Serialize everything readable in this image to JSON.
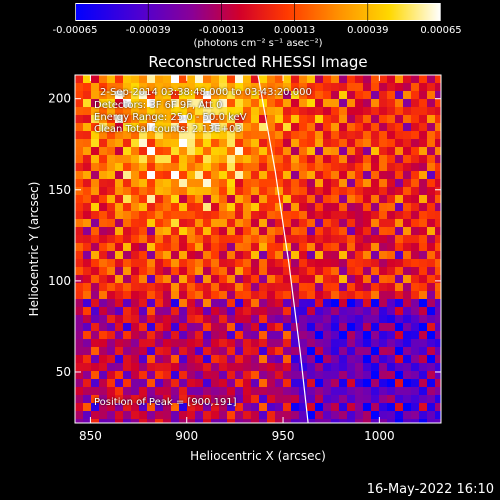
{
  "colorbar": {
    "ticks": [
      "-0.00065",
      "-0.00039",
      "-0.00013",
      "0.00013",
      "0.00039",
      "0.00065"
    ],
    "unit": "(photons cm⁻² s⁻¹ asec⁻²)",
    "range": [
      -0.00065,
      0.00065
    ],
    "colormap": [
      "#0000ff",
      "#6a00c8",
      "#c80032",
      "#ff2a00",
      "#ff8c00",
      "#ffd200",
      "#ffffff"
    ]
  },
  "chart_data": {
    "type": "heatmap",
    "title": "Reconstructed RHESSI Image",
    "xlabel": "Heliocentric X (arcsec)",
    "ylabel": "Heliocentric Y (arcsec)",
    "xlim": [
      842,
      1032
    ],
    "ylim": [
      22,
      213
    ],
    "xticks": [
      850,
      900,
      950,
      1000
    ],
    "yticks": [
      50,
      100,
      150,
      200
    ],
    "peak": [
      900,
      191
    ],
    "limb_curve_x": [
      937,
      946,
      953,
      959,
      963
    ],
    "limb_curve_y": [
      213,
      160,
      110,
      60,
      22
    ]
  },
  "annotations": {
    "line1": "2-Sep-2014 03:38:48.000 to 03:43:20.000",
    "line2": "Detectors: 3F 6F 9F, Att 0",
    "line3": "Energy Range: 25.0 - 50.0 keV",
    "line4": "Clean    Total counts: 2.13E+03",
    "peak": "Position of Peak = [900,191]"
  },
  "footer": {
    "timestamp": "16-May-2022 16:10"
  }
}
